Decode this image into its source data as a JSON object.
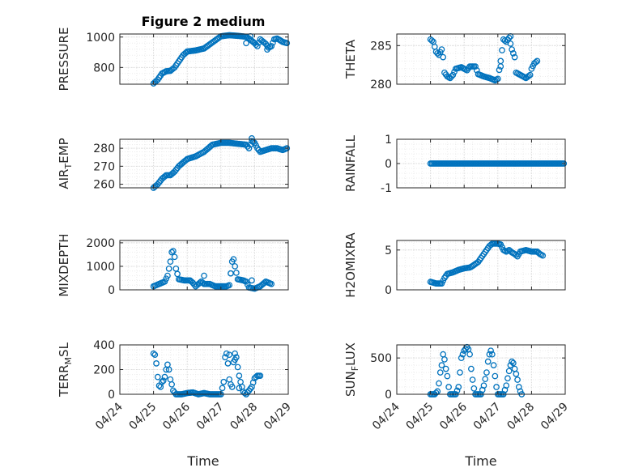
{
  "figure": {
    "title": "Figure 2 medium",
    "xlabel": "Time",
    "date_ticks": [
      "04/24",
      "04/25",
      "04/26",
      "04/27",
      "04/28",
      "04/29"
    ],
    "marker_color": "#0072BD",
    "grid": "dotted minor + major"
  },
  "chart_data": [
    {
      "type": "scatter",
      "id": "pressure",
      "ylabel": "PRESSURE",
      "ylabel_sub": "",
      "xlim": [
        "04/24",
        "04/29"
      ],
      "ylim": [
        690,
        1020
      ],
      "yticks": [
        800,
        1000
      ],
      "x_range": [
        "04/25 00:00",
        "04/28 23:00"
      ],
      "keypoints": [
        [
          0,
          695
        ],
        [
          3,
          720
        ],
        [
          6,
          760
        ],
        [
          9,
          775
        ],
        [
          12,
          778
        ],
        [
          15,
          800
        ],
        [
          18,
          840
        ],
        [
          21,
          880
        ],
        [
          24,
          905
        ],
        [
          30,
          912
        ],
        [
          36,
          925
        ],
        [
          42,
          965
        ],
        [
          48,
          1005
        ],
        [
          54,
          1012
        ],
        [
          60,
          1008
        ],
        [
          66,
          1002
        ],
        [
          68,
          990
        ],
        [
          70,
          975
        ],
        [
          72,
          960
        ],
        [
          74,
          940
        ],
        [
          76,
          985
        ],
        [
          78,
          970
        ],
        [
          80,
          955
        ],
        [
          82,
          930
        ],
        [
          84,
          940
        ],
        [
          86,
          985
        ],
        [
          88,
          990
        ],
        [
          90,
          980
        ],
        [
          92,
          968
        ],
        [
          95,
          960
        ]
      ],
      "outliers": [
        [
          66,
          960
        ],
        [
          69,
          1005
        ],
        [
          81,
          918
        ]
      ]
    },
    {
      "type": "scatter",
      "id": "theta",
      "ylabel": "THETA",
      "ylabel_sub": "",
      "xlim": [
        "04/24",
        "04/29"
      ],
      "ylim": [
        280,
        286.5
      ],
      "yticks": [
        280,
        285
      ],
      "x_range": [
        "04/25 00:00",
        "04/28 23:00"
      ],
      "keypoints": [
        [
          0,
          285.8
        ],
        [
          2,
          285.5
        ],
        [
          4,
          284.2
        ],
        [
          6,
          283.8
        ],
        [
          8,
          284.5
        ],
        [
          9,
          283.5
        ],
        [
          10,
          281.5
        ],
        [
          12,
          281
        ],
        [
          14,
          280.8
        ],
        [
          16,
          281.2
        ],
        [
          18,
          282
        ],
        [
          22,
          282.2
        ],
        [
          26,
          281.8
        ],
        [
          28,
          282.3
        ],
        [
          32,
          282.3
        ],
        [
          34,
          281.3
        ],
        [
          38,
          281
        ],
        [
          42,
          280.8
        ],
        [
          46,
          280.5
        ],
        [
          48,
          280.7
        ],
        [
          50,
          283
        ],
        [
          52,
          285.8
        ],
        [
          54,
          285.5
        ],
        [
          56,
          286
        ],
        [
          58,
          284.5
        ],
        [
          60,
          283.5
        ],
        [
          61,
          281.5
        ],
        [
          64,
          281.2
        ],
        [
          68,
          280.8
        ],
        [
          71,
          281.2
        ],
        [
          72,
          282
        ],
        [
          74,
          282.7
        ],
        [
          76,
          283
        ]
      ],
      "outliers": [
        [
          50,
          282.3
        ],
        [
          57,
          286.2
        ]
      ]
    },
    {
      "type": "scatter",
      "id": "air_temp",
      "ylabel": "AIR",
      "ylabel_sub": "T",
      "ylabel_suffix": "EMP",
      "xlim": [
        "04/24",
        "04/29"
      ],
      "ylim": [
        258,
        285
      ],
      "yticks": [
        260,
        270,
        280
      ],
      "x_range": [
        "04/25 00:00",
        "04/28 23:00"
      ],
      "keypoints": [
        [
          0,
          258
        ],
        [
          3,
          260
        ],
        [
          6,
          263
        ],
        [
          9,
          265
        ],
        [
          12,
          265
        ],
        [
          15,
          267
        ],
        [
          18,
          270
        ],
        [
          21,
          272
        ],
        [
          24,
          274
        ],
        [
          30,
          275.5
        ],
        [
          36,
          278
        ],
        [
          42,
          282
        ],
        [
          48,
          283
        ],
        [
          54,
          283
        ],
        [
          60,
          282.5
        ],
        [
          66,
          282
        ],
        [
          68,
          280
        ],
        [
          70,
          284
        ],
        [
          72,
          283
        ],
        [
          74,
          280
        ],
        [
          76,
          278
        ],
        [
          80,
          279
        ],
        [
          84,
          280
        ],
        [
          88,
          280
        ],
        [
          92,
          279
        ],
        [
          95,
          280
        ]
      ],
      "outliers": [
        [
          70,
          285.5
        ]
      ]
    },
    {
      "type": "scatter",
      "id": "rainfall",
      "ylabel": "RAINFALL",
      "ylabel_sub": "",
      "xlim": [
        "04/24",
        "04/29"
      ],
      "ylim": [
        -1,
        1
      ],
      "yticks": [
        -1,
        0,
        1
      ],
      "x_range": [
        "04/25 00:00",
        "04/28 23:00"
      ],
      "keypoints": [
        [
          0,
          0
        ],
        [
          95,
          0
        ]
      ],
      "outliers": []
    },
    {
      "type": "scatter",
      "id": "mixdepth",
      "ylabel": "MIXDEPTH",
      "ylabel_sub": "",
      "xlim": [
        "04/24",
        "04/29"
      ],
      "ylim": [
        0,
        2100
      ],
      "yticks": [
        0,
        1000,
        2000
      ],
      "x_range": [
        "04/25 00:00",
        "04/28 23:00"
      ],
      "keypoints": [
        [
          0,
          150
        ],
        [
          4,
          250
        ],
        [
          8,
          350
        ],
        [
          10,
          600
        ],
        [
          12,
          1200
        ],
        [
          13,
          1600
        ],
        [
          14,
          1650
        ],
        [
          15,
          1400
        ],
        [
          16,
          900
        ],
        [
          18,
          450
        ],
        [
          22,
          400
        ],
        [
          26,
          400
        ],
        [
          28,
          300
        ],
        [
          30,
          150
        ],
        [
          34,
          350
        ],
        [
          36,
          250
        ],
        [
          40,
          250
        ],
        [
          44,
          150
        ],
        [
          48,
          150
        ],
        [
          52,
          150
        ],
        [
          54,
          200
        ],
        [
          56,
          1200
        ],
        [
          57,
          1300
        ],
        [
          58,
          1000
        ],
        [
          60,
          450
        ],
        [
          64,
          400
        ],
        [
          66,
          350
        ],
        [
          68,
          100
        ],
        [
          72,
          50
        ],
        [
          76,
          150
        ],
        [
          80,
          350
        ],
        [
          84,
          250
        ]
      ],
      "outliers": [
        [
          55,
          700
        ],
        [
          36,
          600
        ],
        [
          70,
          400
        ]
      ]
    },
    {
      "type": "scatter",
      "id": "h2omixra",
      "ylabel": "H2OMIXRA",
      "ylabel_sub": "",
      "xlim": [
        "04/24",
        "04/29"
      ],
      "ylim": [
        0,
        6.2
      ],
      "yticks": [
        0,
        5
      ],
      "x_range": [
        "04/25 00:00",
        "04/28 23:00"
      ],
      "keypoints": [
        [
          0,
          1
        ],
        [
          4,
          0.8
        ],
        [
          8,
          0.8
        ],
        [
          10,
          1.5
        ],
        [
          12,
          2
        ],
        [
          16,
          2.2
        ],
        [
          20,
          2.5
        ],
        [
          24,
          2.7
        ],
        [
          28,
          2.8
        ],
        [
          30,
          3
        ],
        [
          34,
          3.5
        ],
        [
          38,
          4.5
        ],
        [
          42,
          5.5
        ],
        [
          44,
          5.8
        ],
        [
          48,
          5.8
        ],
        [
          50,
          5.7
        ],
        [
          52,
          5
        ],
        [
          54,
          4.8
        ],
        [
          56,
          5
        ],
        [
          58,
          4.7
        ],
        [
          60,
          4.5
        ],
        [
          62,
          4.2
        ],
        [
          64,
          4.8
        ],
        [
          68,
          5
        ],
        [
          72,
          4.8
        ],
        [
          76,
          4.8
        ],
        [
          78,
          4.5
        ],
        [
          80,
          4.3
        ]
      ],
      "outliers": []
    },
    {
      "type": "scatter",
      "id": "terr_msl",
      "ylabel": "TERR",
      "ylabel_sub": "M",
      "ylabel_suffix": "SL",
      "xlim": [
        "04/24",
        "04/29"
      ],
      "ylim": [
        0,
        400
      ],
      "yticks": [
        0,
        200,
        400
      ],
      "x_range": [
        "04/25 00:00",
        "04/28 23:00"
      ],
      "keypoints": [
        [
          0,
          330
        ],
        [
          1,
          320
        ],
        [
          2,
          250
        ],
        [
          3,
          140
        ],
        [
          4,
          70
        ],
        [
          5,
          60
        ],
        [
          6,
          100
        ],
        [
          7,
          110
        ],
        [
          8,
          140
        ],
        [
          9,
          200
        ],
        [
          10,
          240
        ],
        [
          11,
          200
        ],
        [
          12,
          120
        ],
        [
          13,
          80
        ],
        [
          14,
          30
        ],
        [
          16,
          0
        ],
        [
          20,
          0
        ],
        [
          24,
          10
        ],
        [
          28,
          15
        ],
        [
          32,
          0
        ],
        [
          36,
          10
        ],
        [
          40,
          0
        ],
        [
          44,
          0
        ],
        [
          48,
          0
        ],
        [
          50,
          100
        ],
        [
          51,
          300
        ],
        [
          52,
          330
        ],
        [
          53,
          250
        ],
        [
          54,
          120
        ],
        [
          55,
          80
        ],
        [
          56,
          60
        ],
        [
          57,
          260
        ],
        [
          58,
          280
        ],
        [
          59,
          300
        ],
        [
          60,
          220
        ],
        [
          61,
          150
        ],
        [
          62,
          100
        ],
        [
          63,
          60
        ],
        [
          64,
          20
        ],
        [
          66,
          0
        ],
        [
          70,
          60
        ],
        [
          72,
          130
        ],
        [
          74,
          150
        ],
        [
          76,
          150
        ]
      ],
      "outliers": [
        [
          54,
          320
        ],
        [
          58,
          330
        ],
        [
          61,
          50
        ]
      ]
    },
    {
      "type": "scatter",
      "id": "sun_flux",
      "ylabel": "SUN",
      "ylabel_sub": "F",
      "ylabel_suffix": "LUX",
      "xlim": [
        "04/24",
        "04/29"
      ],
      "ylim": [
        0,
        680
      ],
      "yticks": [
        0,
        500
      ],
      "x_range": [
        "04/25 00:00",
        "04/28 23:00"
      ],
      "keypoints": [
        [
          0,
          0
        ],
        [
          3,
          0
        ],
        [
          5,
          40
        ],
        [
          6,
          150
        ],
        [
          7,
          300
        ],
        [
          8,
          400
        ],
        [
          9,
          550
        ],
        [
          10,
          480
        ],
        [
          11,
          350
        ],
        [
          12,
          250
        ],
        [
          13,
          100
        ],
        [
          14,
          0
        ],
        [
          18,
          0
        ],
        [
          20,
          100
        ],
        [
          21,
          300
        ],
        [
          22,
          500
        ],
        [
          24,
          600
        ],
        [
          26,
          650
        ],
        [
          27,
          620
        ],
        [
          28,
          550
        ],
        [
          29,
          350
        ],
        [
          30,
          200
        ],
        [
          31,
          80
        ],
        [
          32,
          0
        ],
        [
          36,
          0
        ],
        [
          38,
          120
        ],
        [
          40,
          300
        ],
        [
          41,
          450
        ],
        [
          42,
          550
        ],
        [
          43,
          600
        ],
        [
          44,
          550
        ],
        [
          45,
          400
        ],
        [
          46,
          250
        ],
        [
          47,
          100
        ],
        [
          48,
          0
        ],
        [
          52,
          0
        ],
        [
          54,
          120
        ],
        [
          56,
          320
        ],
        [
          57,
          400
        ],
        [
          58,
          450
        ],
        [
          59,
          430
        ],
        [
          60,
          350
        ],
        [
          61,
          280
        ],
        [
          62,
          200
        ],
        [
          63,
          100
        ],
        [
          64,
          40
        ],
        [
          65,
          0
        ]
      ],
      "outliers": []
    }
  ]
}
